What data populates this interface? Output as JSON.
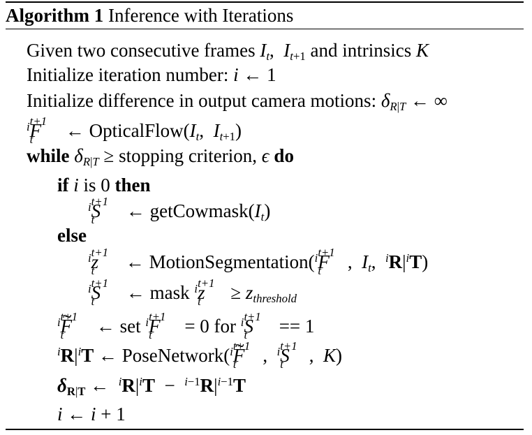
{
  "algorithm": {
    "label": "Algorithm 1",
    "title": "Inference with Iterations"
  },
  "lines": {
    "given_text": "Given two consecutive frames",
    "given_and": "and intrinsics",
    "init_iter": "Initialize iteration number:",
    "init_diff": "Initialize difference in output camera motions:",
    "optical_flow": "OpticalFlow",
    "while_kw": "while",
    "stopping": "stopping criterion,",
    "do_kw": "do",
    "if_kw": "if",
    "is_zero": "is 0",
    "then_kw": "then",
    "get_cowmask": "getCowmask",
    "else_kw": "else",
    "motion_seg": "MotionSegmentation",
    "mask_text": "mask",
    "threshold_sub": "threshold",
    "set_text": "set",
    "for_text": "for",
    "pose_network": "PoseNetwork"
  }
}
